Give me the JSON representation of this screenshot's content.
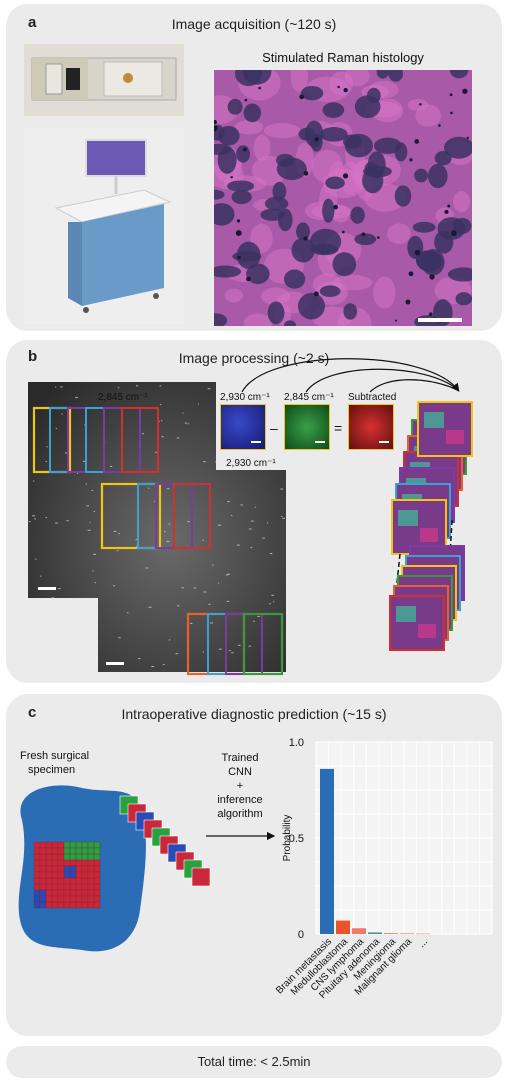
{
  "panel_a": {
    "label": "a",
    "title": "Image acquisition (~120 s)",
    "srh_title": "Stimulated Raman histology"
  },
  "panel_b": {
    "label": "b",
    "title": "Image processing (~2 s)",
    "label_2845_main": "2,845 cm⁻¹",
    "label_2930_main": "2,930 cm⁻¹",
    "label_2930_small": "2,930 cm⁻¹",
    "label_2845_small": "2,845 cm⁻¹",
    "label_subtracted": "Subtracted",
    "minus": "–",
    "equals": "="
  },
  "panel_c": {
    "label": "c",
    "title": "Intraoperative diagnostic prediction (~15 s)",
    "specimen_label_1": "Fresh surgical",
    "specimen_label_2": "specimen",
    "cnn_1": "Trained",
    "cnn_2": "CNN",
    "cnn_3": "+",
    "cnn_4": "inference",
    "cnn_5": "algorithm"
  },
  "chart_data": {
    "type": "bar",
    "ylabel": "Probability",
    "ylim": [
      0,
      1.0
    ],
    "yticks": [
      "0",
      "0.5",
      "1.0"
    ],
    "categories": [
      "Brain metastasis",
      "Medulloblastoma",
      "CNS lymphoma",
      "Pituitary adenoma",
      "Meningioma",
      "Malignant glioma",
      "..."
    ],
    "values": [
      0.86,
      0.07,
      0.03,
      0.008,
      0.005,
      0.004,
      0.003
    ],
    "colors": [
      "#2a6db5",
      "#e8552b",
      "#f07a6a",
      "#3a9a8a",
      "#e88a7a",
      "#e89a8a",
      "#f0b0a0"
    ],
    "grid": true
  },
  "total": {
    "text": "Total time: < 2.5min"
  }
}
